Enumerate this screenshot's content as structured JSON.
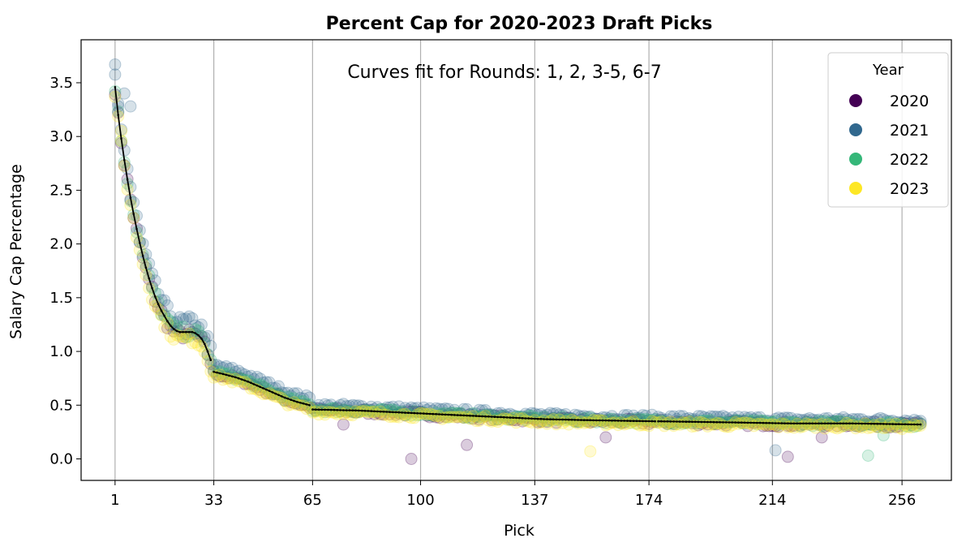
{
  "chart_data": {
    "type": "scatter",
    "title": "Percent Cap for 2020-2023 Draft Picks",
    "annotation": "Curves fit for Rounds: 1, 2, 3-5, 6-7",
    "xlabel": "Pick",
    "ylabel": "Salary Cap Percentage",
    "xlim": [
      -10,
      272
    ],
    "ylim": [
      -0.2,
      3.9
    ],
    "xticks": [
      1,
      33,
      65,
      100,
      137,
      174,
      214,
      256
    ],
    "yticks": [
      0.0,
      0.5,
      1.0,
      1.5,
      2.0,
      2.5,
      3.0,
      3.5
    ],
    "ytick_labels": [
      "0.0",
      "0.5",
      "1.0",
      "1.5",
      "2.0",
      "2.5",
      "3.0",
      "3.5"
    ],
    "grid": "vertical lines at x ticks",
    "legend": {
      "title": "Year",
      "placement": "top-right",
      "entries": [
        {
          "name": "2020",
          "color": "#440154"
        },
        {
          "name": "2021",
          "color": "#31688e"
        },
        {
          "name": "2022",
          "color": "#35b779"
        },
        {
          "name": "2023",
          "color": "#fde725"
        }
      ]
    },
    "series": [
      {
        "name": "2020",
        "color": "#440154",
        "offset": -0.02,
        "outliers": [
          {
            "x": 75,
            "y": 0.32
          },
          {
            "x": 97,
            "y": 0.0
          },
          {
            "x": 115,
            "y": 0.13
          },
          {
            "x": 160,
            "y": 0.2
          },
          {
            "x": 219,
            "y": 0.02
          },
          {
            "x": 230,
            "y": 0.2
          }
        ]
      },
      {
        "name": "2021",
        "color": "#31688e",
        "offset": 0.1,
        "outliers": [
          {
            "x": 1,
            "y": 3.67
          },
          {
            "x": 2,
            "y": 3.28
          },
          {
            "x": 4,
            "y": 3.4
          },
          {
            "x": 6,
            "y": 3.28
          },
          {
            "x": 215,
            "y": 0.08
          }
        ]
      },
      {
        "name": "2022",
        "color": "#35b779",
        "offset": 0.0,
        "outliers": [
          {
            "x": 245,
            "y": 0.03
          },
          {
            "x": 250,
            "y": 0.22
          }
        ]
      },
      {
        "name": "2023",
        "color": "#fde725",
        "offset": -0.06,
        "outliers": [
          {
            "x": 155,
            "y": 0.07
          },
          {
            "x": 3,
            "y": 3.05
          }
        ]
      }
    ],
    "fit_segments": [
      {
        "round": "1",
        "x_start": 1,
        "x_end": 32,
        "points": [
          [
            1,
            3.46
          ],
          [
            2,
            3.2
          ],
          [
            3,
            2.98
          ],
          [
            4,
            2.78
          ],
          [
            5,
            2.6
          ],
          [
            6,
            2.43
          ],
          [
            7,
            2.28
          ],
          [
            8,
            2.14
          ],
          [
            9,
            2.01
          ],
          [
            10,
            1.89
          ],
          [
            11,
            1.78
          ],
          [
            12,
            1.68
          ],
          [
            13,
            1.59
          ],
          [
            14,
            1.51
          ],
          [
            15,
            1.44
          ],
          [
            16,
            1.38
          ],
          [
            17,
            1.33
          ],
          [
            18,
            1.28
          ],
          [
            19,
            1.24
          ],
          [
            20,
            1.21
          ],
          [
            21,
            1.19
          ],
          [
            22,
            1.18
          ],
          [
            23,
            1.18
          ],
          [
            24,
            1.18
          ],
          [
            25,
            1.18
          ],
          [
            26,
            1.18
          ],
          [
            27,
            1.17
          ],
          [
            28,
            1.15
          ],
          [
            29,
            1.12
          ],
          [
            30,
            1.07
          ],
          [
            31,
            1.0
          ],
          [
            32,
            0.92
          ]
        ]
      },
      {
        "round": "2",
        "x_start": 33,
        "x_end": 64,
        "points": [
          [
            33,
            0.81
          ],
          [
            36,
            0.79
          ],
          [
            40,
            0.76
          ],
          [
            44,
            0.72
          ],
          [
            48,
            0.67
          ],
          [
            52,
            0.62
          ],
          [
            56,
            0.57
          ],
          [
            60,
            0.53
          ],
          [
            64,
            0.5
          ]
        ]
      },
      {
        "round": "3-5",
        "x_start": 65,
        "x_end": 176,
        "points": [
          [
            65,
            0.46
          ],
          [
            80,
            0.45
          ],
          [
            95,
            0.43
          ],
          [
            110,
            0.41
          ],
          [
            125,
            0.39
          ],
          [
            140,
            0.37
          ],
          [
            155,
            0.36
          ],
          [
            176,
            0.35
          ]
        ]
      },
      {
        "round": "6-7",
        "x_start": 177,
        "x_end": 262,
        "points": [
          [
            177,
            0.35
          ],
          [
            200,
            0.34
          ],
          [
            220,
            0.33
          ],
          [
            240,
            0.33
          ],
          [
            262,
            0.32
          ]
        ]
      }
    ]
  }
}
